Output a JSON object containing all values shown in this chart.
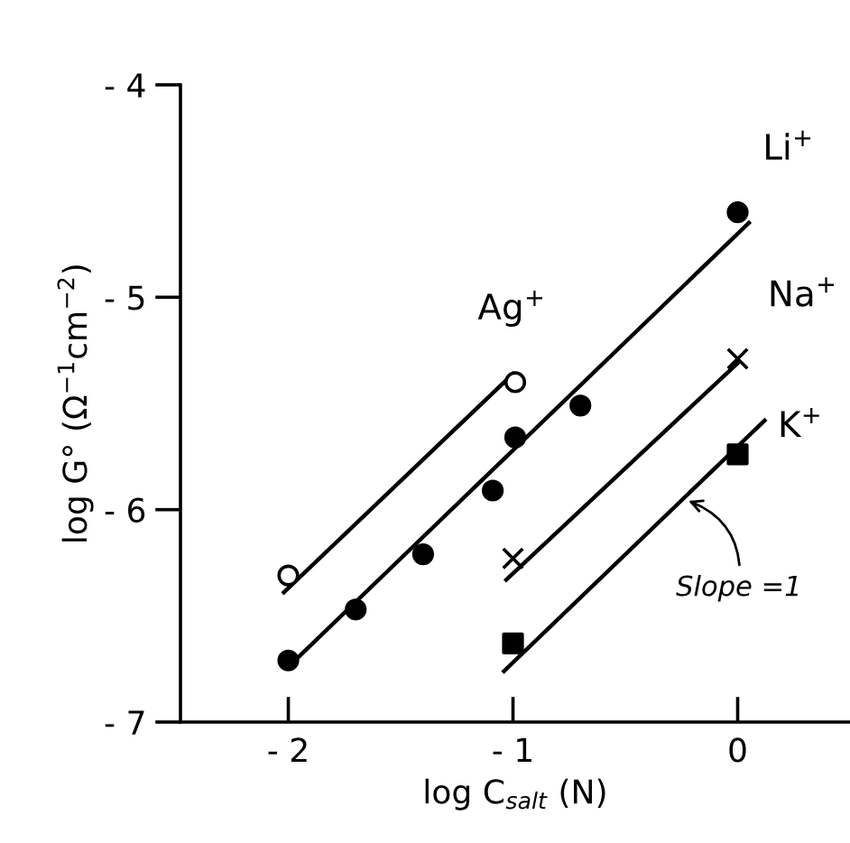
{
  "chart_data": {
    "type": "scatter",
    "xlabel": "log C$_{salt}$ (N)",
    "ylabel": "log G° (Ω$^{−1}$cm$^{−2}$)",
    "xlim": [
      -2.48,
      0.5
    ],
    "ylim": [
      -7,
      -4
    ],
    "xticks": [
      -2,
      -1,
      0
    ],
    "yticks": [
      -7,
      -6,
      -5,
      -4
    ],
    "grid": false,
    "legend": false,
    "series": [
      {
        "name": "Li$^{+}$",
        "color": "#000000",
        "marker": "circle",
        "x": [
          -2,
          -1.7,
          -1.4,
          -1.09,
          -0.99,
          -0.7,
          0
        ],
        "values": [
          -6.71,
          -6.47,
          -6.21,
          -5.91,
          -5.66,
          -5.51,
          -4.6
        ]
      },
      {
        "name": "Ag$^{+}$",
        "color": "#000000",
        "marker": "circle_open",
        "x": [
          -2,
          -0.99
        ],
        "values": [
          -6.31,
          -5.4
        ]
      },
      {
        "name": "Na$^{+}$",
        "color": "#000000",
        "marker": "cross",
        "x": [
          -1,
          0
        ],
        "values": [
          -6.23,
          -5.29
        ]
      },
      {
        "name": "K$^{+}$",
        "color": "#000000",
        "marker": "square",
        "x": [
          -1,
          0
        ],
        "values": [
          -6.63,
          -5.74
        ]
      },
      {
        "type": "line",
        "color": "#000000",
        "marker": "none",
        "x": [
          -2,
          0.05
        ],
        "values": [
          -6.74,
          -4.65
        ]
      },
      {
        "type": "line",
        "color": "#000000",
        "marker": "none",
        "x": [
          -2.02,
          -1.0
        ],
        "values": [
          -6.39,
          -5.36
        ]
      },
      {
        "type": "line",
        "color": "#000000",
        "marker": "none",
        "x": [
          -1.03,
          0
        ],
        "values": [
          -6.33,
          -5.31
        ]
      },
      {
        "type": "line",
        "color": "#000000",
        "marker": "none",
        "x": [
          -1.04,
          0.12
        ],
        "values": [
          -6.76,
          -5.58
        ]
      }
    ],
    "annotations": [
      {
        "text": "Slope =1",
        "x": -0.24,
        "y": -5.95
      }
    ]
  }
}
